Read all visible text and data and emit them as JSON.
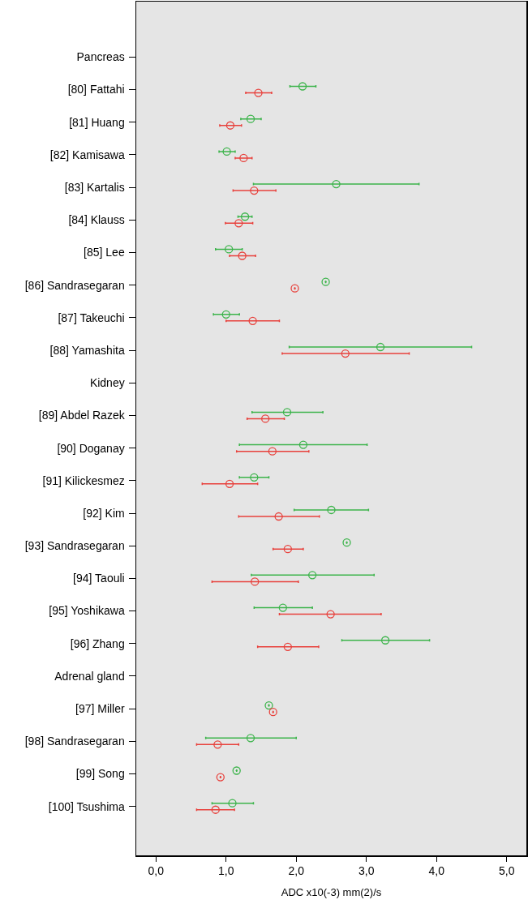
{
  "chart_data": {
    "type": "scatter",
    "orientation": "horizontal",
    "xlabel": "ADC x10(-3) mm(2)/s",
    "categories": [
      "Pancreas",
      "[80] Fattahi",
      "[81] Huang",
      "[82] Kamisawa",
      "[83] Kartalis",
      "[84] Klauss",
      "[85] Lee",
      "[86] Sandrasegaran",
      "[87] Takeuchi",
      "[88] Yamashita",
      "Kidney",
      "[89] Abdel Razek",
      "[90] Doganay",
      "[91] Kilickesmez",
      "[92] Kim",
      "[93] Sandrasegaran",
      "[94] Taouli",
      "[95] Yoshikawa",
      "[96] Zhang",
      "Adrenal gland",
      "[97] Miller",
      "[98] Sandrasegaran",
      "[99] Song",
      "[100] Tsushima"
    ],
    "series": [
      {
        "color": "#3cb44b",
        "values": [
          null,
          2.09,
          1.35,
          1.01,
          2.57,
          1.27,
          1.04,
          2.42,
          1.0,
          3.2,
          null,
          1.87,
          2.1,
          1.4,
          2.5,
          2.72,
          2.23,
          1.81,
          3.27,
          null,
          1.61,
          1.35,
          1.15,
          1.09
        ],
        "errors": [
          null,
          [
            1.91,
            2.28
          ],
          [
            1.21,
            1.5
          ],
          [
            0.9,
            1.13
          ],
          [
            1.39,
            3.75
          ],
          [
            1.17,
            1.37
          ],
          [
            0.85,
            1.23
          ],
          null,
          [
            0.82,
            1.19
          ],
          [
            1.9,
            4.5
          ],
          null,
          [
            1.37,
            2.38
          ],
          [
            1.19,
            3.01
          ],
          [
            1.19,
            1.61
          ],
          [
            1.97,
            3.03
          ],
          null,
          [
            1.36,
            3.11
          ],
          [
            1.4,
            2.23
          ],
          [
            2.65,
            3.9
          ],
          null,
          null,
          [
            0.71,
            2.0
          ],
          null,
          [
            0.8,
            1.39
          ]
        ]
      },
      {
        "color": "#e8413c",
        "values": [
          null,
          1.46,
          1.06,
          1.25,
          1.4,
          1.18,
          1.23,
          1.98,
          1.38,
          2.7,
          null,
          1.56,
          1.66,
          1.05,
          1.75,
          1.88,
          1.41,
          2.49,
          1.88,
          null,
          1.67,
          0.88,
          0.92,
          0.85
        ],
        "errors": [
          null,
          [
            1.28,
            1.65
          ],
          [
            0.91,
            1.22
          ],
          [
            1.13,
            1.37
          ],
          [
            1.1,
            1.71
          ],
          [
            0.99,
            1.38
          ],
          [
            1.05,
            1.42
          ],
          null,
          [
            1.0,
            1.76
          ],
          [
            1.8,
            3.61
          ],
          null,
          [
            1.3,
            1.83
          ],
          [
            1.15,
            2.18
          ],
          [
            0.66,
            1.45
          ],
          [
            1.18,
            2.33
          ],
          [
            1.67,
            2.1
          ],
          [
            0.8,
            2.03
          ],
          [
            1.76,
            3.21
          ],
          [
            1.45,
            2.32
          ],
          null,
          null,
          [
            0.58,
            1.18
          ],
          null,
          [
            0.58,
            1.12
          ]
        ]
      }
    ],
    "xlim": [
      -0.28,
      5.28
    ],
    "xticks": [
      {
        "value": 0,
        "label": "0,0"
      },
      {
        "value": 1,
        "label": "1,0"
      },
      {
        "value": 2,
        "label": "2,0"
      },
      {
        "value": 3,
        "label": "3,0"
      },
      {
        "value": 4,
        "label": "4,0"
      },
      {
        "value": 5,
        "label": "5,0"
      }
    ],
    "grid": false,
    "marker": "circle"
  }
}
